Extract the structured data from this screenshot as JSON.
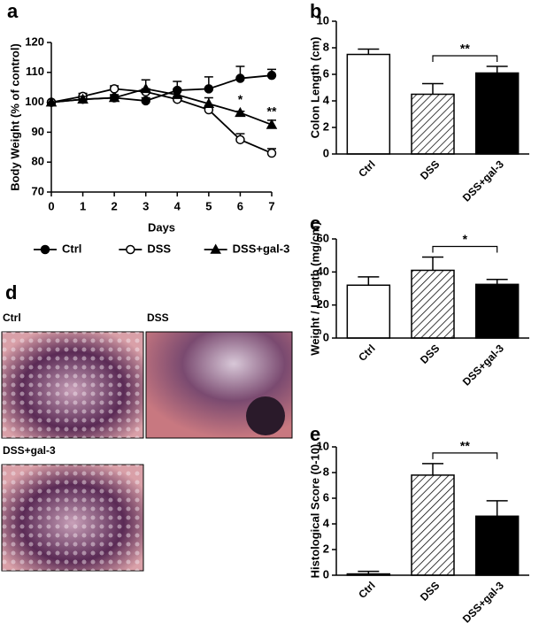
{
  "chart_data": [
    {
      "type": "line",
      "panel_label": "a",
      "x_label": "Days",
      "y_label": "Body Weight (% of control)",
      "x": [
        0,
        1,
        2,
        3,
        4,
        5,
        6,
        7
      ],
      "xlim": [
        0,
        7
      ],
      "xticks": [
        0,
        1,
        2,
        3,
        4,
        5,
        6,
        7
      ],
      "ylim": [
        70,
        120
      ],
      "yticks": [
        70,
        80,
        90,
        100,
        110,
        120
      ],
      "series": [
        {
          "name": "Ctrl",
          "color": "#000000",
          "marker": "circle",
          "marker_fill": "#000000",
          "values": [
            100,
            101,
            101.5,
            100.5,
            104,
            104.5,
            108,
            109
          ],
          "errors": [
            0,
            1,
            1,
            1,
            3,
            4,
            4,
            2
          ]
        },
        {
          "name": "DSS",
          "color": "#000000",
          "marker": "circle",
          "marker_fill": "#ffffff",
          "values": [
            100,
            102,
            104.5,
            103.5,
            101,
            97.5,
            87.5,
            83
          ],
          "errors": [
            0,
            1,
            1,
            1,
            1,
            1.5,
            2,
            1.5
          ]
        },
        {
          "name": "DSS+gal-3",
          "color": "#000000",
          "marker": "triangle",
          "marker_fill": "#000000",
          "values": [
            100,
            101,
            101.5,
            104.5,
            102.5,
            99.5,
            96.5,
            92.5
          ],
          "errors": [
            0,
            1,
            1,
            3,
            2,
            2,
            0.5,
            1.5
          ]
        }
      ],
      "annotations": [
        {
          "text": "*",
          "x": 6
        },
        {
          "text": "**",
          "x": 7
        }
      ],
      "legend": "bottom"
    },
    {
      "type": "bar",
      "panel_label": "b",
      "y_label": "Colon Length (cm)",
      "categories": [
        "Ctrl",
        "DSS",
        "DSS+gal-3"
      ],
      "values": [
        7.5,
        4.5,
        6.1
      ],
      "errors": [
        0.4,
        0.8,
        0.5
      ],
      "colors": [
        "#ffffff",
        "#ffffff",
        "#000000"
      ],
      "hatch": [
        false,
        true,
        false
      ],
      "ylim": [
        0,
        10
      ],
      "yticks": [
        0,
        2,
        4,
        6,
        8,
        10
      ],
      "significance": {
        "text": "**",
        "from": 1,
        "to": 2
      }
    },
    {
      "type": "bar",
      "panel_label": "c",
      "y_label": "Weight / Length (mg/cm)",
      "categories": [
        "Ctrl",
        "DSS",
        "DSS+gal-3"
      ],
      "values": [
        32,
        41,
        32.5
      ],
      "errors": [
        5,
        8,
        3
      ],
      "colors": [
        "#ffffff",
        "#ffffff",
        "#000000"
      ],
      "hatch": [
        false,
        true,
        false
      ],
      "ylim": [
        0,
        60
      ],
      "yticks": [
        0,
        20,
        40,
        60
      ],
      "significance": {
        "text": "*",
        "from": 1,
        "to": 2
      }
    },
    {
      "type": "bar",
      "panel_label": "e",
      "y_label": "Histological Score (0-10)",
      "categories": [
        "Ctrl",
        "DSS",
        "DSS+gal-3"
      ],
      "values": [
        0.1,
        7.8,
        4.6
      ],
      "errors": [
        0.2,
        0.9,
        1.2
      ],
      "colors": [
        "#ffffff",
        "#ffffff",
        "#000000"
      ],
      "hatch": [
        false,
        true,
        false
      ],
      "ylim": [
        0,
        10
      ],
      "yticks": [
        0,
        2,
        4,
        6,
        8,
        10
      ],
      "significance": {
        "text": "**",
        "from": 1,
        "to": 2
      }
    }
  ],
  "panel_d": {
    "panel_label": "d",
    "images": [
      "Ctrl",
      "DSS",
      "DSS+gal-3"
    ]
  }
}
